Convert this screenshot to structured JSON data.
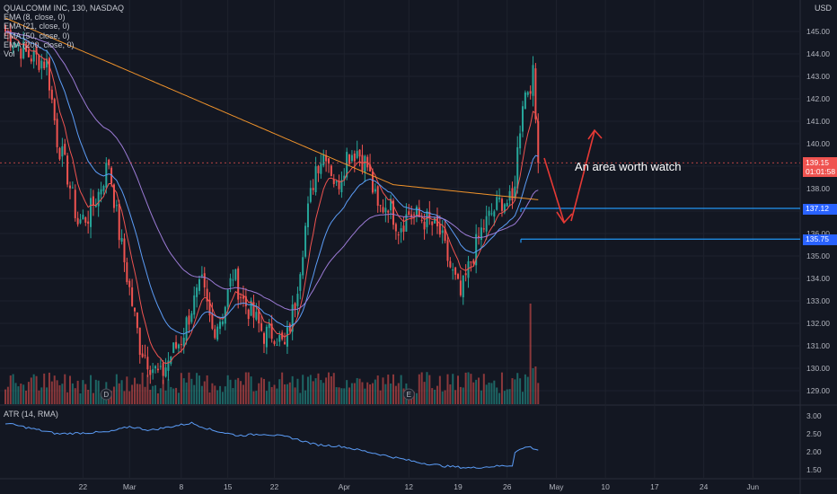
{
  "legend": {
    "symbol": "QUALCOMM INC, 130, NASDAQ",
    "indicators": [
      "EMA (8, close, 0)",
      "EMA (21, close, 0)",
      "EMA (50, close, 0)",
      "EMA (200, close, 0)",
      "Vol"
    ]
  },
  "atr_label": "ATR (14, RMA)",
  "currency": "USD",
  "annotation": "An area worth watch",
  "price_tags": {
    "last": "139.15",
    "countdown": "01:01:58",
    "level1": "137.12",
    "level2": "135.75"
  },
  "event_markers": [
    {
      "label": "D",
      "date_index": 39
    },
    {
      "label": "E",
      "date_index": 156
    }
  ],
  "colors": {
    "up": "#26a69a",
    "down": "#ef5350",
    "ema8": "#ef5350",
    "ema21": "#5b9cf6",
    "ema50": "#9c7bd6",
    "ema200": "#f0932b",
    "level": "#2196f3",
    "arrow": "#e53935",
    "atr": "#5b9cf6"
  },
  "chart_data": {
    "type": "candlestick",
    "x_tick_labels": [
      "22",
      "Mar",
      "8",
      "15",
      "22",
      "Apr",
      "12",
      "19",
      "26",
      "May",
      "10",
      "17",
      "24",
      "Jun"
    ],
    "y_tick_labels": [
      "145.00",
      "144.00",
      "143.00",
      "142.00",
      "141.00",
      "140.00",
      "139.00",
      "138.00",
      "137.00",
      "136.00",
      "135.00",
      "134.00",
      "133.00",
      "132.00",
      "131.00",
      "130.00",
      "129.00"
    ],
    "ylim": [
      128.8,
      145.4
    ],
    "atr_tick_labels": [
      "3.00",
      "2.50",
      "2.00",
      "1.50"
    ],
    "atr_ylim": [
      1.4,
      3.1
    ],
    "levels": [
      137.12,
      135.75
    ],
    "last_price": 139.15,
    "price_anchors": [
      [
        0,
        145.0
      ],
      [
        8,
        144.0
      ],
      [
        16,
        143.6
      ],
      [
        20,
        140.2
      ],
      [
        24,
        138.6
      ],
      [
        28,
        136.5
      ],
      [
        32,
        136.8
      ],
      [
        36,
        137.8
      ],
      [
        40,
        139.2
      ],
      [
        44,
        136.0
      ],
      [
        48,
        133.5
      ],
      [
        52,
        131.0
      ],
      [
        56,
        130.2
      ],
      [
        60,
        129.6
      ],
      [
        64,
        130.6
      ],
      [
        68,
        131.3
      ],
      [
        72,
        132.7
      ],
      [
        76,
        133.7
      ],
      [
        80,
        131.7
      ],
      [
        84,
        132.4
      ],
      [
        88,
        134.2
      ],
      [
        92,
        133.0
      ],
      [
        96,
        132.3
      ],
      [
        100,
        131.5
      ],
      [
        104,
        131.6
      ],
      [
        108,
        130.9
      ],
      [
        112,
        133.0
      ],
      [
        116,
        136.3
      ],
      [
        120,
        139.0
      ],
      [
        124,
        139.7
      ],
      [
        128,
        138.0
      ],
      [
        132,
        139.5
      ],
      [
        136,
        139.7
      ],
      [
        140,
        139.0
      ],
      [
        144,
        137.0
      ],
      [
        148,
        137.4
      ],
      [
        152,
        136.3
      ],
      [
        156,
        136.9
      ],
      [
        160,
        136.7
      ],
      [
        164,
        136.5
      ],
      [
        168,
        136.0
      ],
      [
        172,
        134.5
      ],
      [
        176,
        133.2
      ],
      [
        180,
        134.8
      ],
      [
        184,
        136.1
      ],
      [
        188,
        136.9
      ],
      [
        192,
        137.5
      ],
      [
        196,
        137.3
      ],
      [
        200,
        142.0
      ],
      [
        204,
        143.0
      ],
      [
        206,
        139.15
      ]
    ],
    "atr_anchors": [
      [
        0,
        2.8
      ],
      [
        20,
        2.5
      ],
      [
        40,
        2.55
      ],
      [
        48,
        2.7
      ],
      [
        56,
        2.6
      ],
      [
        64,
        2.7
      ],
      [
        72,
        2.8
      ],
      [
        80,
        2.6
      ],
      [
        90,
        2.45
      ],
      [
        100,
        2.5
      ],
      [
        110,
        2.4
      ],
      [
        120,
        2.2
      ],
      [
        130,
        2.15
      ],
      [
        140,
        2.0
      ],
      [
        150,
        1.85
      ],
      [
        160,
        1.7
      ],
      [
        170,
        1.6
      ],
      [
        180,
        1.55
      ],
      [
        190,
        1.6
      ],
      [
        196,
        1.62
      ],
      [
        197,
        2.0
      ],
      [
        202,
        2.15
      ],
      [
        206,
        2.05
      ]
    ]
  }
}
